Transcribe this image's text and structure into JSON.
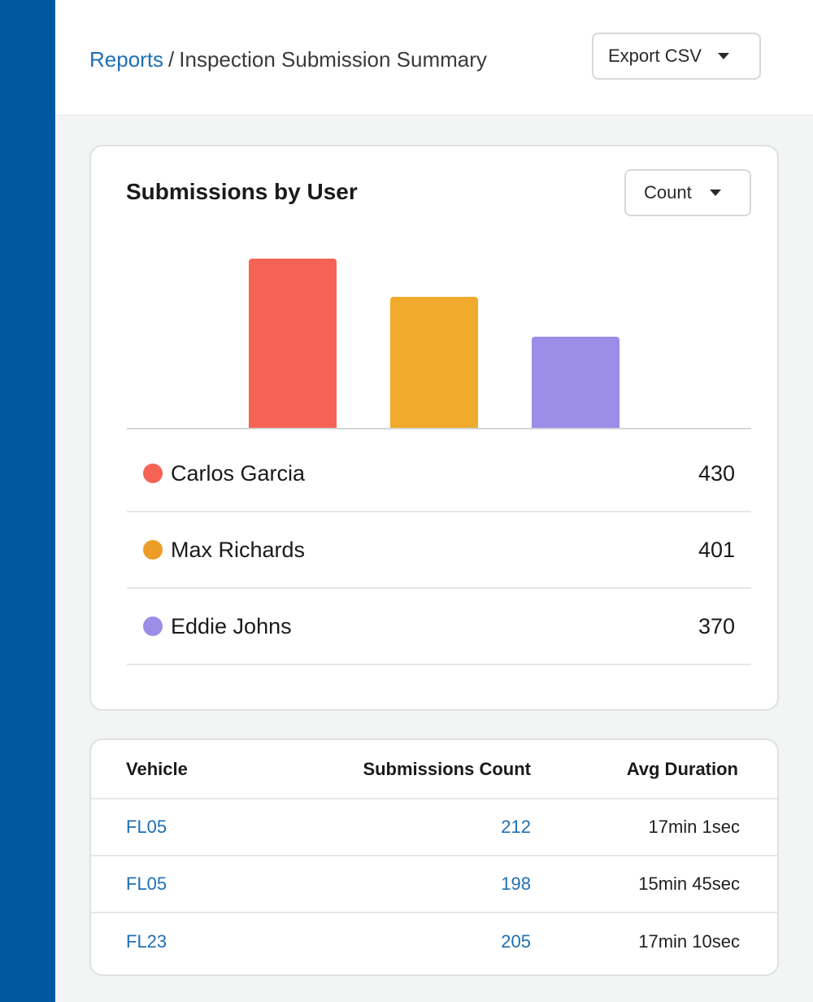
{
  "breadcrumb": {
    "parent": "Reports",
    "separator": "/",
    "current": "Inspection Submission Summary"
  },
  "toolbar": {
    "export_label": "Export CSV"
  },
  "chart_card": {
    "title": "Submissions by User",
    "metric_select": "Count"
  },
  "chart_data": {
    "type": "bar",
    "categories": [
      "Carlos Garcia",
      "Max Richards",
      "Eddie Johns"
    ],
    "values": [
      430,
      401,
      370
    ],
    "colors": [
      "#f66256",
      "#f0aa2c",
      "#9b8de8"
    ],
    "title": "Submissions by User"
  },
  "legend": [
    {
      "name": "Carlos Garcia",
      "value": "430",
      "color": "#f66256"
    },
    {
      "name": "Max Richards",
      "value": "401",
      "color": "#ed9c27"
    },
    {
      "name": "Eddie Johns",
      "value": "370",
      "color": "#9b8de8"
    }
  ],
  "table": {
    "headers": [
      "Vehicle",
      "Submissions Count",
      "Avg Duration"
    ],
    "rows": [
      {
        "vehicle": "FL05",
        "count": "212",
        "duration": "17min 1sec"
      },
      {
        "vehicle": "FL05",
        "count": "198",
        "duration": "15min 45sec"
      },
      {
        "vehicle": "FL23",
        "count": "205",
        "duration": "17min 10sec"
      }
    ]
  }
}
